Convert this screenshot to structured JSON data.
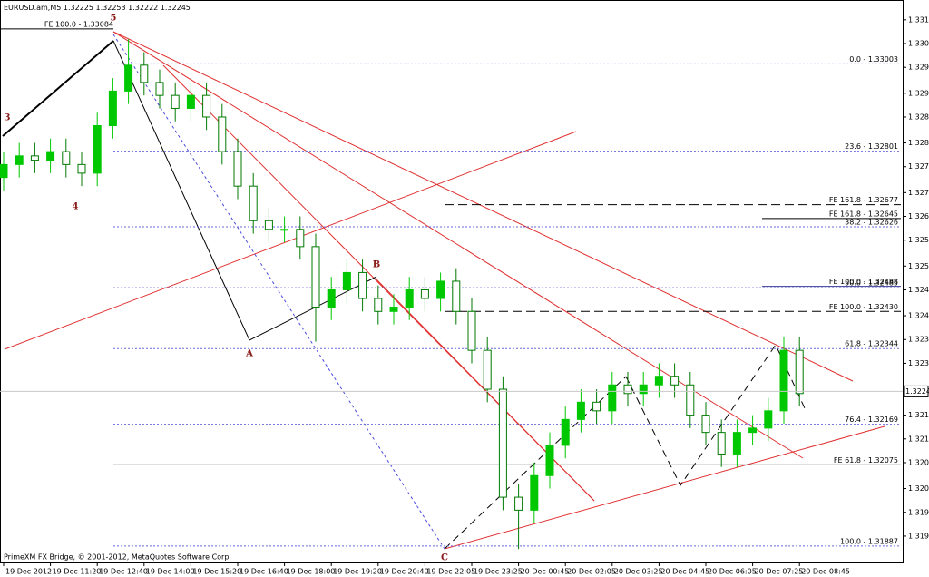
{
  "chart_data": {
    "type": "candlestick",
    "title": "EURUSD.am,M5",
    "quote": [
      1.32225,
      1.32253,
      1.32222,
      1.32245
    ],
    "categories": [
      "19 Dec 2012",
      null,
      null,
      "19 Dec 11:20",
      null,
      null,
      "19 Dec 12:40",
      null,
      null,
      "19 Dec 14:00",
      null,
      null,
      "19 Dec 15:20",
      null,
      null,
      "19 Dec 16:40",
      null,
      null,
      "19 Dec 18:00",
      null,
      null,
      "19 Dec 19:20",
      null,
      null,
      "19 Dec 20:40",
      null,
      null,
      "19 Dec 22:05",
      null,
      null,
      "19 Dec 23:25",
      null,
      null,
      "20 Dec 00:45",
      null,
      null,
      "20 Dec 02:05",
      null,
      null,
      "20 Dec 03:25",
      null,
      null,
      "20 Dec 04:45",
      null,
      null,
      "20 Dec 06:05",
      null,
      null,
      "20 Dec 07:25",
      null,
      null,
      "20 Dec 08:45"
    ],
    "open": [
      1.3274,
      1.3277,
      1.3279,
      1.3278,
      1.328,
      1.3277,
      1.3275,
      1.3286,
      1.3294,
      1.33,
      1.3296,
      1.3293,
      1.329,
      1.3293,
      1.3288,
      1.328,
      1.3272,
      1.3264,
      1.3262,
      1.3262,
      1.3258,
      1.3244,
      1.3248,
      1.3252,
      1.3246,
      1.3243,
      1.3244,
      1.3248,
      1.3246,
      1.325,
      1.3243,
      1.3234,
      1.3225,
      1.32,
      1.3197,
      1.3205,
      1.3212,
      1.3218,
      1.3222,
      1.322,
      1.3226,
      1.3224,
      1.3226,
      1.3228,
      1.3226,
      1.3219,
      1.3215,
      1.321,
      1.3215,
      1.3216,
      1.322,
      1.3234
    ],
    "high": [
      1.328,
      1.3282,
      1.3282,
      1.3283,
      1.3283,
      1.328,
      1.3289,
      1.3297,
      1.3306,
      1.3303,
      1.3299,
      1.3296,
      1.3296,
      1.3296,
      1.3291,
      1.3283,
      1.3275,
      1.3267,
      1.3265,
      1.3265,
      1.3261,
      1.3251,
      1.3255,
      1.3255,
      1.3249,
      1.3247,
      1.3251,
      1.3251,
      1.3252,
      1.3253,
      1.3246,
      1.3237,
      1.3228,
      1.3203,
      1.3208,
      1.3215,
      1.3221,
      1.3225,
      1.3225,
      1.3229,
      1.3229,
      1.3229,
      1.3231,
      1.3231,
      1.3229,
      1.3222,
      1.3218,
      1.3218,
      1.3219,
      1.3223,
      1.3237,
      1.3237
    ],
    "low": [
      1.3271,
      1.3274,
      1.3275,
      1.3275,
      1.3274,
      1.3272,
      1.3272,
      1.3283,
      1.3291,
      1.3293,
      1.329,
      1.3287,
      1.3287,
      1.3285,
      1.3277,
      1.3269,
      1.3261,
      1.3259,
      1.3259,
      1.3255,
      1.3236,
      1.3241,
      1.3245,
      1.3243,
      1.324,
      1.324,
      1.3241,
      1.3243,
      1.3243,
      1.324,
      1.3231,
      1.3222,
      1.3197,
      1.3188,
      1.3194,
      1.3202,
      1.3209,
      1.3215,
      1.3217,
      1.3217,
      1.3221,
      1.3221,
      1.3223,
      1.3223,
      1.3216,
      1.3212,
      1.3207,
      1.3207,
      1.3212,
      1.3213,
      1.3217,
      1.3221
    ],
    "close": [
      1.3277,
      1.3279,
      1.3278,
      1.328,
      1.3277,
      1.3275,
      1.3286,
      1.3294,
      1.33,
      1.3296,
      1.3293,
      1.329,
      1.3293,
      1.3288,
      1.328,
      1.3272,
      1.3264,
      1.3262,
      1.3262,
      1.3258,
      1.3244,
      1.3248,
      1.3252,
      1.3246,
      1.3243,
      1.3244,
      1.3248,
      1.3246,
      1.325,
      1.3243,
      1.3234,
      1.3225,
      1.32,
      1.3197,
      1.3205,
      1.3212,
      1.3218,
      1.3222,
      1.322,
      1.3226,
      1.3224,
      1.3226,
      1.3228,
      1.3226,
      1.3219,
      1.3215,
      1.321,
      1.3215,
      1.3216,
      1.322,
      1.3234,
      1.3224
    ],
    "up_color": "#00c800",
    "down_color": "#007a00",
    "ylim": [
      1.31849,
      1.33134
    ],
    "yticks": [
      1.33105,
      1.3305,
      1.32995,
      1.32935,
      1.3288,
      1.3282,
      1.32765,
      1.32705,
      1.3265,
      1.32595,
      1.32535,
      1.3248,
      1.3242,
      1.32365,
      1.3231,
      1.3219,
      1.32135,
      1.3208,
      1.3202,
      1.31965,
      1.3191
    ],
    "current_price": 1.32245,
    "levels": [
      {
        "label": "0.0 - 1.33003",
        "value": 1.33003,
        "style": "dotted",
        "color": "#6a6ad8"
      },
      {
        "label": "FE 100.0 - 1.33084",
        "value": 1.33084,
        "style": "solid",
        "color": "#000000"
      },
      {
        "label": "23.6 - 1.32801",
        "value": 1.32801,
        "style": "dotted",
        "color": "#6a6ad8"
      },
      {
        "label": "FE 161.8 - 1.32677",
        "value": 1.32677,
        "style": "dashed",
        "color": "#000000"
      },
      {
        "label": "FE 161.8 - 1.32645",
        "value": 1.32645,
        "style": "solid",
        "color": "#000000"
      },
      {
        "label": "38.2 - 1.32626",
        "value": 1.32626,
        "style": "dotted",
        "color": "#6a6ad8"
      },
      {
        "label": "50.0 - 1.32485",
        "value": 1.32485,
        "style": "dotted",
        "color": "#6a6ad8"
      },
      {
        "label": "FE 100.0 - 1.32488",
        "value": 1.32488,
        "style": "solid",
        "color": "#3a3a9a"
      },
      {
        "label": "FE 100.0 - 1.32430",
        "value": 1.3243,
        "style": "dashed",
        "color": "#000000"
      },
      {
        "label": "61.8 - 1.32344",
        "value": 1.32344,
        "style": "dotted",
        "color": "#6a6ad8"
      },
      {
        "label": "76.4 - 1.32169",
        "value": 1.32169,
        "style": "dotted",
        "color": "#6a6ad8"
      },
      {
        "label": "FE 61.8 - 1.32075",
        "value": 1.32075,
        "style": "solid",
        "color": "#000000"
      },
      {
        "label": "100.0 - 1.31887",
        "value": 1.31887,
        "style": "dotted",
        "color": "#6a6ad8"
      }
    ],
    "wave_labels": [
      "5",
      "3",
      "4",
      "A",
      "B",
      "C"
    ],
    "footer": "PrimeXM FX Bridge, © 2001-2012, MetaQuotes Software Corp."
  }
}
